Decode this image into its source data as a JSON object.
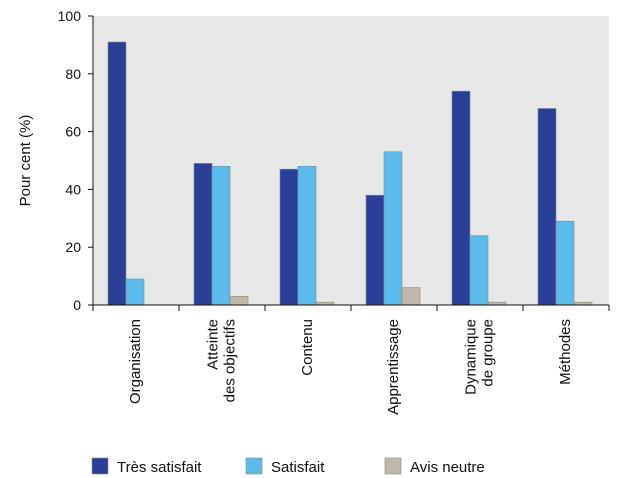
{
  "chart_data": {
    "type": "bar",
    "title": "",
    "xlabel": "",
    "ylabel": "Pour cent (%)",
    "ylim": [
      0,
      100
    ],
    "yticks": [
      0,
      20,
      40,
      60,
      80,
      100
    ],
    "grid": false,
    "legend_position": "bottom",
    "categories": [
      [
        "Organisation"
      ],
      [
        "Atteinte",
        "des objectifs"
      ],
      [
        "Contenu"
      ],
      [
        "Apprentissage"
      ],
      [
        "Dynamique",
        "de groupe"
      ],
      [
        "Méthodes"
      ]
    ],
    "series": [
      {
        "name": "Très satisfait",
        "color": "#2b3f97",
        "values": [
          91,
          49,
          47,
          38,
          74,
          68
        ]
      },
      {
        "name": "Satisfait",
        "color": "#5dbbeb",
        "values": [
          9,
          48,
          48,
          53,
          24,
          29
        ]
      },
      {
        "name": "Avis neutre",
        "color": "#bfb8a8",
        "values": [
          0,
          3,
          1,
          6,
          1,
          1
        ]
      }
    ],
    "plot_background": "#e8e8e8"
  }
}
